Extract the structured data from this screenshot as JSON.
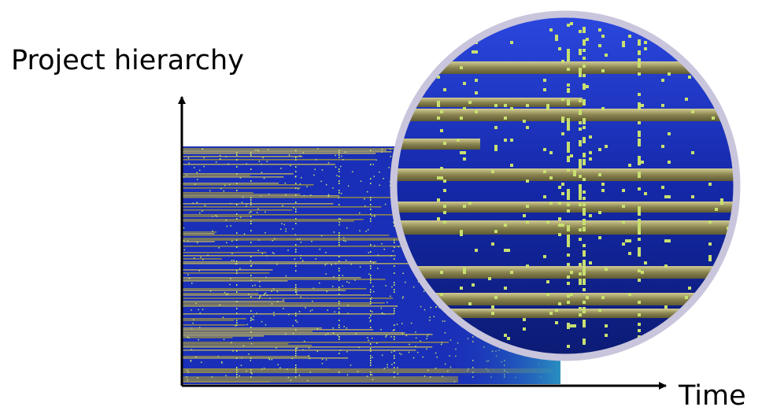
{
  "diagram": {
    "y_axis_label": "Project hierarchy",
    "x_axis_label": "Time",
    "colors": {
      "background_blue": "#1a2fb8",
      "bar_olive": "#8a8450",
      "bar_olive_light": "#bdb57c",
      "marker_green": "#c8e070",
      "teal_fade": "#2a8fc0",
      "lens_border": "#c9c5dc",
      "axis": "#000000"
    }
  }
}
